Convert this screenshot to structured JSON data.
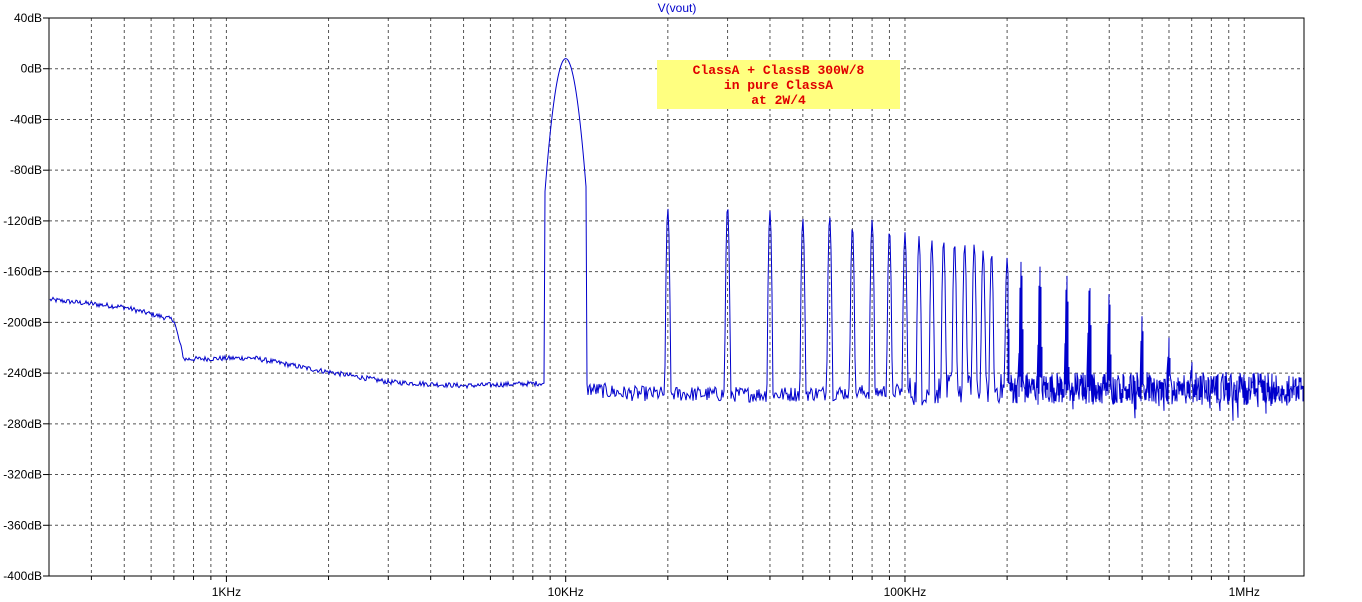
{
  "chart_data": {
    "type": "line",
    "title": "V(vout)",
    "xscale": "log",
    "xlim": [
      300,
      1500000
    ],
    "ylim": [
      -400,
      40
    ],
    "yticks": [
      40,
      0,
      -40,
      -80,
      -120,
      -160,
      -200,
      -240,
      -280,
      -320,
      -360,
      -400
    ],
    "ytick_labels": [
      "40dB",
      "0dB",
      "-40dB",
      "-80dB",
      "-120dB",
      "-160dB",
      "-200dB",
      "-240dB",
      "-280dB",
      "-320dB",
      "-360dB",
      "-400dB"
    ],
    "xticks": [
      1000,
      10000,
      100000,
      1000000
    ],
    "xtick_labels": [
      "1KHz",
      "10KHz",
      "100KHz",
      "1MHz"
    ],
    "grid": true,
    "line_color": "#0000cc",
    "annotation": [
      "ClassA + ClassB 300W/8",
      "in pure ClassA",
      "at 2W/4"
    ],
    "fundamental": {
      "freq": 10000,
      "level": 8
    },
    "harmonic_peaks": [
      {
        "freq": 20000,
        "level": -110
      },
      {
        "freq": 30000,
        "level": -108
      },
      {
        "freq": 40000,
        "level": -112
      },
      {
        "freq": 50000,
        "level": -118
      },
      {
        "freq": 60000,
        "level": -116
      },
      {
        "freq": 70000,
        "level": -124
      },
      {
        "freq": 80000,
        "level": -119
      },
      {
        "freq": 90000,
        "level": -127
      },
      {
        "freq": 100000,
        "level": -129
      },
      {
        "freq": 110000,
        "level": -132
      },
      {
        "freq": 120000,
        "level": -135
      },
      {
        "freq": 130000,
        "level": -135
      },
      {
        "freq": 140000,
        "level": -137
      },
      {
        "freq": 150000,
        "level": -138
      },
      {
        "freq": 160000,
        "level": -138
      },
      {
        "freq": 170000,
        "level": -143
      },
      {
        "freq": 180000,
        "level": -145
      },
      {
        "freq": 200000,
        "level": -149
      },
      {
        "freq": 220000,
        "level": -152
      },
      {
        "freq": 250000,
        "level": -156
      },
      {
        "freq": 300000,
        "level": -163
      },
      {
        "freq": 350000,
        "level": -170
      },
      {
        "freq": 400000,
        "level": -177
      },
      {
        "freq": 500000,
        "level": -195
      },
      {
        "freq": 600000,
        "level": -212
      },
      {
        "freq": 700000,
        "level": -230
      }
    ],
    "noise_floor": [
      {
        "freq": 300,
        "level": -182
      },
      {
        "freq": 500,
        "level": -188
      },
      {
        "freq": 700,
        "level": -198
      },
      {
        "freq": 750,
        "level": -229
      },
      {
        "freq": 1200,
        "level": -228
      },
      {
        "freq": 1800,
        "level": -237
      },
      {
        "freq": 3000,
        "level": -247
      },
      {
        "freq": 5000,
        "level": -250
      },
      {
        "freq": 8500,
        "level": -248
      },
      {
        "freq": 15000,
        "level": -256
      },
      {
        "freq": 40000,
        "level": -257
      },
      {
        "freq": 200000,
        "level": -252
      },
      {
        "freq": 1500000,
        "level": -252
      }
    ]
  }
}
